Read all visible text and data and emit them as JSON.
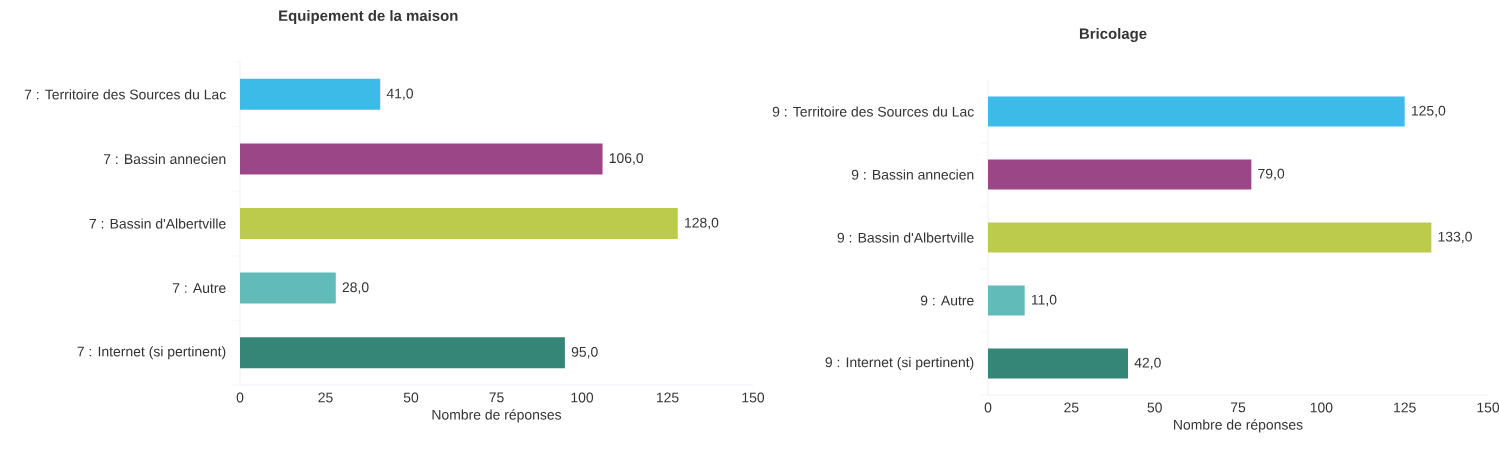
{
  "chart_data": [
    {
      "type": "bar",
      "orientation": "horizontal",
      "title": "Equipement de la maison",
      "xlabel": "Nombre de réponses",
      "categories": [
        "7 : Territoire des Sources du Lac",
        "7 : Bassin annecien",
        "7 : Bassin d'Albertville",
        "7 : Autre",
        "7 : Internet (si pertinent)"
      ],
      "values": [
        41,
        106,
        128,
        28,
        95
      ],
      "value_labels": [
        "41,0",
        "106,0",
        "128,0",
        "28,0",
        "95,0"
      ],
      "colors": [
        "#3dbbe8",
        "#9b4687",
        "#bccb4c",
        "#60bbb9",
        "#358676"
      ],
      "xlim": [
        0,
        150
      ],
      "xticks": [
        0,
        25,
        50,
        75,
        100,
        125,
        150
      ]
    },
    {
      "type": "bar",
      "orientation": "horizontal",
      "title": "Bricolage",
      "xlabel": "Nombre de réponses",
      "categories": [
        "9 : Territoire des Sources du Lac",
        "9 : Bassin annecien",
        "9 : Bassin d'Albertville",
        "9 : Autre",
        "9 : Internet (si pertinent)"
      ],
      "values": [
        125,
        79,
        133,
        11,
        42
      ],
      "value_labels": [
        "125,0",
        "79,0",
        "133,0",
        "11,0",
        "42,0"
      ],
      "colors": [
        "#3dbbe8",
        "#9b4687",
        "#bccb4c",
        "#60bbb9",
        "#358676"
      ],
      "xlim": [
        0,
        150
      ],
      "xticks": [
        0,
        25,
        50,
        75,
        100,
        125,
        150
      ]
    }
  ]
}
